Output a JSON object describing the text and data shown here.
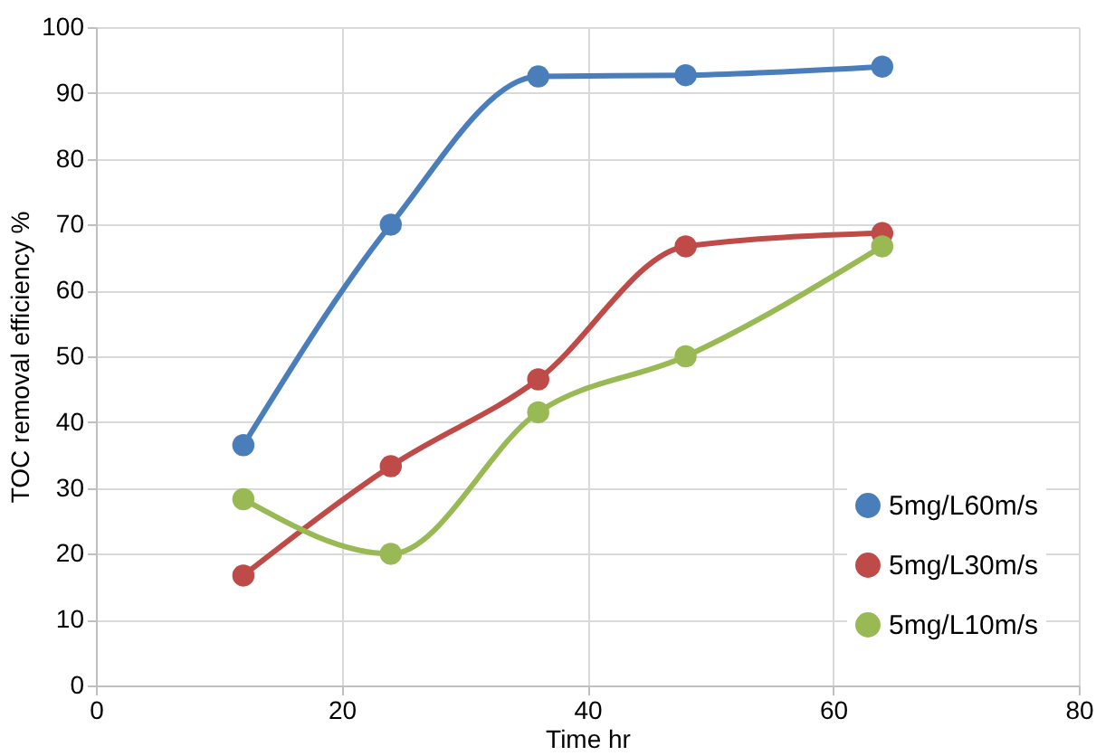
{
  "chart_data": {
    "type": "line",
    "xlabel": "Time hr",
    "ylabel": "TOC removal efficiency %",
    "x": [
      12,
      24,
      36,
      48,
      64
    ],
    "series": [
      {
        "name": "5mg/L60m/s",
        "color": "#4a7ebb",
        "values": [
          36.5,
          70,
          92.5,
          92.7,
          94
        ]
      },
      {
        "name": "5mg/L30m/s",
        "color": "#be4b48",
        "values": [
          16.7,
          33.3,
          46.5,
          66.7,
          68.7
        ]
      },
      {
        "name": "5mg/L10m/s",
        "color": "#98b954",
        "values": [
          28.3,
          20,
          41.5,
          50,
          66.7
        ]
      }
    ],
    "xlim": [
      0,
      80
    ],
    "xticks": [
      0,
      20,
      40,
      60,
      80
    ],
    "ylim": [
      0,
      100
    ],
    "yticks": [
      0,
      10,
      20,
      30,
      40,
      50,
      60,
      70,
      80,
      90,
      100
    ],
    "grid": true,
    "legend": "bottom right",
    "marker": "circle",
    "line_style": "solid"
  }
}
